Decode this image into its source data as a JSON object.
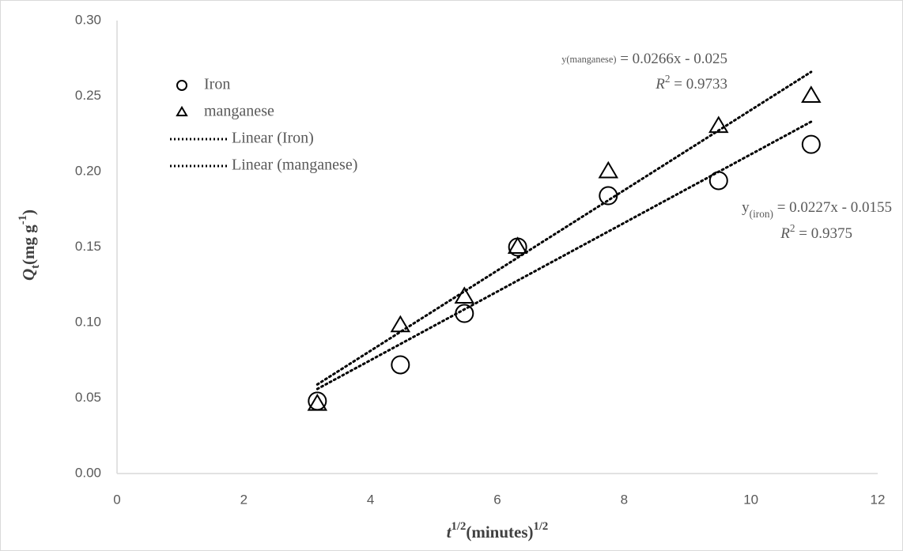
{
  "chart_data": {
    "type": "scatter",
    "x_label": [
      {
        "text": "t",
        "style": "italic"
      },
      {
        "text": "1/2",
        "style": "sup"
      },
      {
        "text": "(minutes)",
        "style": "normal"
      },
      {
        "text": "1/2",
        "style": "sup"
      }
    ],
    "y_label": [
      {
        "text": "Q",
        "style": "italic"
      },
      {
        "text": "t",
        "style": "sub"
      },
      {
        "text": "(mg g",
        "style": "normal"
      },
      {
        "text": "-1",
        "style": "sup"
      },
      {
        "text": ")",
        "style": "normal"
      }
    ],
    "xlim": [
      0,
      12
    ],
    "xticks": [
      0,
      2,
      4,
      6,
      8,
      10,
      12
    ],
    "ylim": [
      0,
      0.3
    ],
    "yticks": [
      {
        "value": 0,
        "label": "0.00"
      },
      {
        "value": 0.05,
        "label": "0.05"
      },
      {
        "value": 0.1,
        "label": "0.10"
      },
      {
        "value": 0.15,
        "label": "0.15"
      },
      {
        "value": 0.2,
        "label": "0.20"
      },
      {
        "value": 0.25,
        "label": "0.25"
      },
      {
        "value": 0.3,
        "label": "0.30"
      }
    ],
    "legend": "upper left",
    "series": [
      {
        "name": "Iron",
        "marker": "circle",
        "color": "#000000",
        "x": [
          3.16,
          4.47,
          5.48,
          6.32,
          7.75,
          9.49,
          10.95
        ],
        "values": [
          0.048,
          0.072,
          0.106,
          0.15,
          0.184,
          0.194,
          0.218
        ]
      },
      {
        "name": "manganese",
        "marker": "triangle",
        "color": "#000000",
        "x": [
          3.16,
          4.47,
          5.48,
          6.32,
          7.75,
          9.49,
          10.95
        ],
        "values": [
          0.046,
          0.098,
          0.117,
          0.15,
          0.2,
          0.23,
          0.25
        ]
      },
      {
        "name": "Linear (Iron)",
        "line": "dotted",
        "color": "#000000",
        "x": [
          3.16,
          10.95
        ],
        "values": [
          0.056,
          0.233
        ]
      },
      {
        "name": "Linear (manganese)",
        "line": "dotted",
        "color": "#000000",
        "x": [
          3.16,
          10.95
        ],
        "values": [
          0.059,
          0.266
        ]
      }
    ],
    "annotations": [
      {
        "parts": [
          {
            "text": "y(manganese)",
            "style": "small"
          },
          {
            "text": " = 0.0266x - 0.025",
            "style": "normal"
          }
        ]
      },
      {
        "parts": [
          {
            "text": "R",
            "style": "italic"
          },
          {
            "text": "2",
            "style": "sup"
          },
          {
            "text": " = 0.9733",
            "style": "normal"
          }
        ]
      },
      {
        "parts": [
          {
            "text": "y",
            "style": "normal"
          },
          {
            "text": "(iron)",
            "style": "sub"
          },
          {
            "text": " = 0.0227x - 0.0155",
            "style": "normal"
          }
        ]
      },
      {
        "parts": [
          {
            "text": "R",
            "style": "italic"
          },
          {
            "text": "2",
            "style": "sup"
          },
          {
            "text": " = 0.9375",
            "style": "normal"
          }
        ]
      }
    ]
  }
}
